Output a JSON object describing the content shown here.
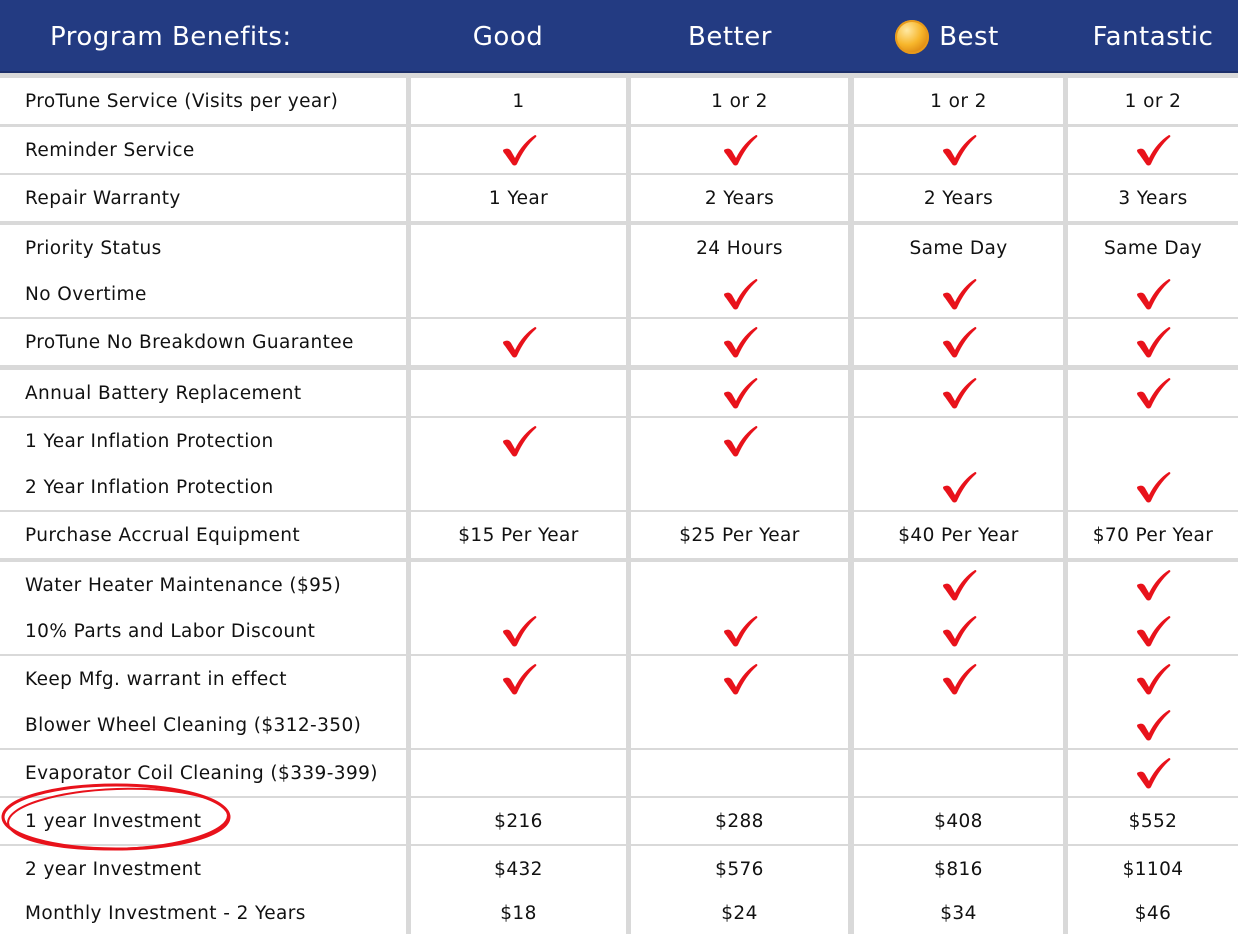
{
  "header": {
    "program_benefits": "Program Benefits:",
    "tiers": [
      "Good",
      "Better",
      "Best",
      "Fantastic"
    ],
    "best_icon": "gold-medal-icon",
    "background_color": "#233b82"
  },
  "check_color": "#e8121b",
  "rows": [
    {
      "label": "ProTune Service (Visits per year)",
      "values": [
        "1",
        "1 or 2",
        "1 or 2",
        "1 or 2"
      ]
    },
    {
      "label": "Reminder Service",
      "values": [
        "check",
        "check",
        "check",
        "check"
      ]
    },
    {
      "label": "Repair Warranty",
      "values": [
        "1 Year",
        "2 Years",
        "2 Years",
        "3 Years"
      ]
    },
    {
      "label": "Priority Status",
      "values": [
        "",
        "24 Hours",
        "Same Day",
        "Same Day"
      ]
    },
    {
      "label": "No Overtime",
      "values": [
        "",
        "check",
        "check",
        "check"
      ]
    },
    {
      "label": "ProTune No Breakdown Guarantee",
      "values": [
        "check",
        "check",
        "check",
        "check"
      ]
    },
    {
      "label": "Annual Battery Replacement",
      "values": [
        "",
        "check",
        "check",
        "check"
      ]
    },
    {
      "label": "1 Year Inflation Protection",
      "values": [
        "check",
        "check",
        "",
        ""
      ]
    },
    {
      "label": "2 Year Inflation Protection",
      "values": [
        "",
        "",
        "check",
        "check"
      ]
    },
    {
      "label": "Purchase Accrual Equipment",
      "values": [
        "$15 Per Year",
        "$25 Per Year",
        "$40 Per Year",
        "$70 Per Year"
      ]
    },
    {
      "label": "Water Heater Maintenance ($95)",
      "values": [
        "",
        "",
        "check",
        "check"
      ]
    },
    {
      "label": "10% Parts and Labor Discount",
      "values": [
        "check",
        "check",
        "check",
        "check"
      ]
    },
    {
      "label": "Keep Mfg. warrant in effect",
      "values": [
        "check",
        "check",
        "check",
        "check"
      ]
    },
    {
      "label": "Blower Wheel Cleaning ($312-350)",
      "values": [
        "",
        "",
        "",
        "check"
      ]
    },
    {
      "label": "Evaporator Coil Cleaning ($339-399)",
      "values": [
        "",
        "",
        "",
        "check"
      ]
    },
    {
      "label": "1 year Investment",
      "values": [
        "$216",
        "$288",
        "$408",
        "$552"
      ],
      "circled": true
    },
    {
      "label": "2 year Investment",
      "values": [
        "$432",
        "$576",
        "$816",
        "$1104"
      ]
    },
    {
      "label": "Monthly Investment - 2 Years",
      "values": [
        "$18",
        "$24",
        "$34",
        "$46"
      ]
    }
  ]
}
